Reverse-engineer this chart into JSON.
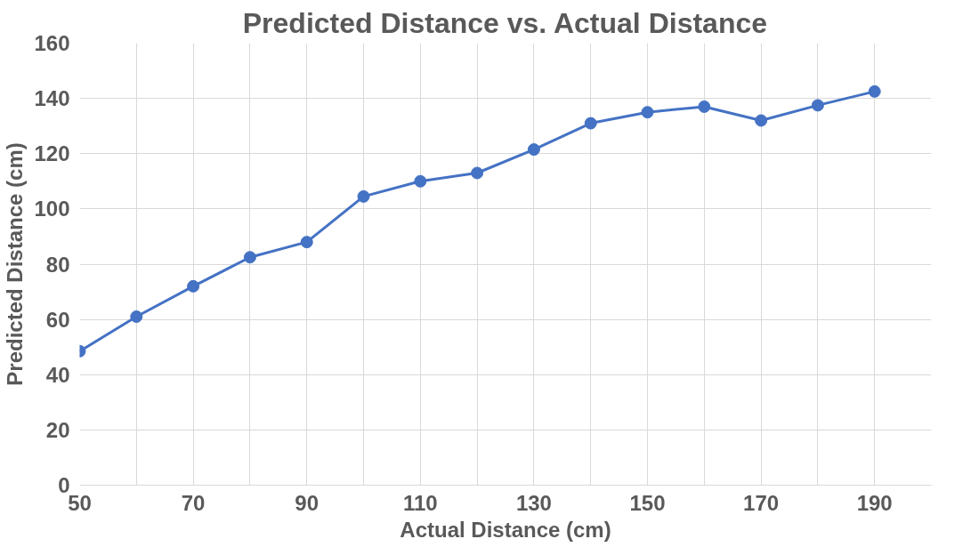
{
  "chart_data": {
    "type": "line",
    "title": "Predicted Distance vs. Actual Distance",
    "xlabel": "Actual Distance (cm)",
    "ylabel": "Predicted Distance (cm)",
    "x": [
      50,
      60,
      70,
      80,
      90,
      100,
      110,
      120,
      130,
      140,
      150,
      160,
      170,
      180,
      190
    ],
    "series": [
      {
        "color": "#4472c4",
        "values": [
          48.5,
          61,
          72,
          82.5,
          88,
          104.5,
          110,
          113,
          121.5,
          131,
          135,
          137,
          132,
          137.5,
          142.5
        ]
      }
    ],
    "xlim": [
      50,
      200
    ],
    "xticks": [
      50,
      {
        "value": 60,
        "label": null
      },
      70,
      {
        "value": 80,
        "label": null
      },
      90,
      {
        "value": 100,
        "label": null
      },
      110,
      {
        "value": 120,
        "label": null
      },
      130,
      {
        "value": 140,
        "label": null
      },
      150,
      {
        "value": 160,
        "label": null
      },
      170,
      {
        "value": 180,
        "label": null
      },
      190
    ],
    "ylim": [
      0,
      160
    ],
    "yticks": [
      0,
      20,
      40,
      60,
      80,
      100,
      120,
      140,
      160
    ],
    "grid": true,
    "marker": "circle",
    "line_style": "solid"
  }
}
